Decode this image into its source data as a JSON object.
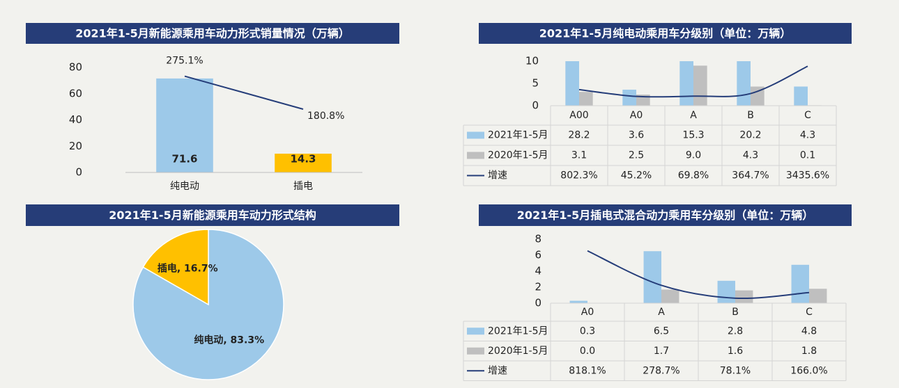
{
  "chart_data": [
    {
      "type": "bar",
      "title": "2021年1-5月新能源乘用车动力形式销量情况（万辆）",
      "categories": [
        "纯电动",
        "插电"
      ],
      "series": [
        {
          "values": [
            71.6,
            14.3
          ],
          "colors": [
            "#9dc9e9",
            "#ffc000"
          ]
        },
        {
          "type": "line",
          "axis": "y2",
          "color": "#253d79",
          "values": [
            275.1,
            180.8
          ],
          "value_labels": [
            "275.1%",
            "180.8%"
          ]
        }
      ],
      "ylim": [
        0,
        80
      ],
      "yticks": [
        0,
        20,
        40,
        60,
        80
      ],
      "y2lim": [
        0,
        300
      ]
    },
    {
      "type": "pie",
      "title": "2021年1-5月新能源乘用车动力形式结构",
      "categories": [
        "纯电动",
        "插电"
      ],
      "values": [
        83.3,
        16.7
      ],
      "value_labels": [
        "纯电动, 83.3%",
        "插电, 16.7%"
      ],
      "colors": [
        "#9dc9e9",
        "#ffc000"
      ]
    },
    {
      "type": "bar",
      "title": "2021年1-5月纯电动乘用车分级别（单位：万辆）",
      "categories": [
        "A00",
        "A0",
        "A",
        "B",
        "C"
      ],
      "series": [
        {
          "name": "2021年1-5月",
          "color": "#9dc9e9",
          "values": [
            28.2,
            3.6,
            15.3,
            20.2,
            4.3
          ],
          "value_labels": [
            "28.2",
            "3.6",
            "15.3",
            "20.2",
            "4.3"
          ]
        },
        {
          "name": "2020年1-5月",
          "color": "#bfbfbf",
          "values": [
            3.1,
            2.5,
            9.0,
            4.3,
            0.1
          ],
          "value_labels": [
            "3.1",
            "2.5",
            "9.0",
            "4.3",
            "0.1"
          ]
        },
        {
          "name": "增速",
          "type": "line",
          "axis": "y2",
          "color": "#253d79",
          "values": [
            802.3,
            45.2,
            69.8,
            364.7,
            3435.6
          ],
          "value_labels": [
            "802.3%",
            "45.2%",
            "69.8%",
            "364.7%",
            "3435.6%"
          ]
        }
      ],
      "ylim": [
        0,
        10
      ],
      "yticks": [
        0,
        5,
        10
      ],
      "y2lim": [
        -1000,
        4000
      ],
      "data_table": true
    },
    {
      "type": "bar",
      "title": "2021年1-5月插电式混合动力乘用车分级别（单位：万辆）",
      "categories": [
        "A0",
        "A",
        "B",
        "C"
      ],
      "series": [
        {
          "name": "2021年1-5月",
          "color": "#9dc9e9",
          "values": [
            0.3,
            6.5,
            2.8,
            4.8
          ],
          "value_labels": [
            "0.3",
            "6.5",
            "2.8",
            "4.8"
          ]
        },
        {
          "name": "2020年1-5月",
          "color": "#bfbfbf",
          "values": [
            0.0,
            1.7,
            1.6,
            1.8
          ],
          "value_labels": [
            "0.0",
            "1.7",
            "1.6",
            "1.8"
          ]
        },
        {
          "name": "增速",
          "type": "line",
          "axis": "y2",
          "color": "#253d79",
          "values": [
            818.1,
            278.7,
            78.1,
            166.0
          ],
          "value_labels": [
            "818.1%",
            "278.7%",
            "78.1%",
            "166.0%"
          ]
        }
      ],
      "ylim": [
        0,
        8
      ],
      "yticks": [
        0,
        2,
        4,
        6,
        8
      ],
      "y2lim": [
        0,
        1000
      ],
      "data_table": true
    }
  ]
}
